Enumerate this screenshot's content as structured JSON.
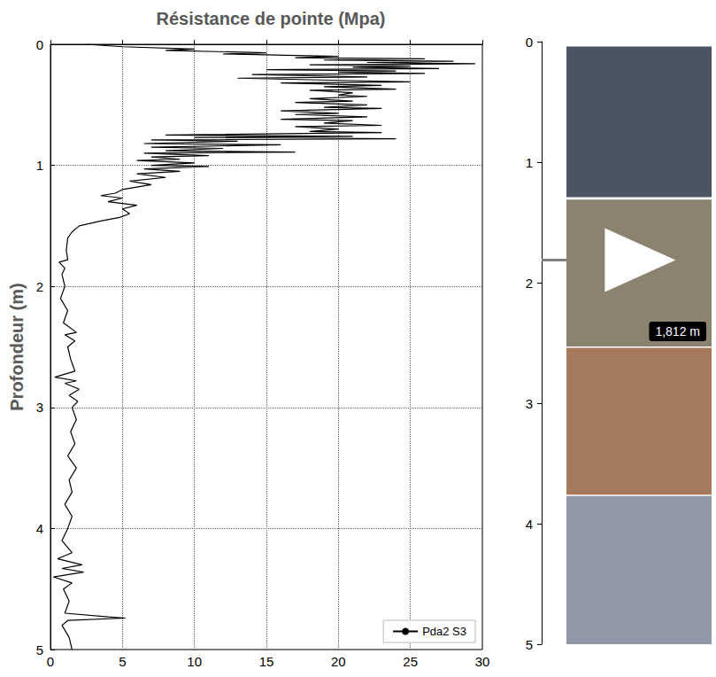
{
  "chart_data": {
    "type": "line",
    "x_label": "Résistance de pointe (Mpa)",
    "y_label": "Profondeur (m)",
    "series": [
      {
        "name": "Pda2 S3",
        "color": "#000000",
        "x": [
          2.5,
          5,
          10,
          8,
          15,
          12,
          20,
          17,
          26,
          19,
          28,
          22,
          29.5,
          18,
          25,
          21,
          27,
          15,
          24,
          20,
          26,
          14,
          22,
          13,
          21,
          25,
          16,
          23,
          19,
          24,
          18,
          21,
          20,
          22,
          18,
          21,
          17,
          22,
          19,
          23,
          16,
          20,
          17,
          22,
          16,
          21,
          19,
          23,
          17,
          20,
          18,
          23,
          8,
          21,
          10,
          24,
          7,
          13,
          6.5,
          16,
          7,
          12,
          8,
          17,
          6.5,
          11,
          7,
          9,
          6,
          10,
          7,
          11,
          6.5,
          9,
          6,
          8,
          5.5,
          7,
          5,
          4.5,
          3.5,
          5,
          4,
          6,
          5,
          5.5,
          4.8,
          3.5,
          2,
          1.5,
          1.2,
          1.1,
          1.2,
          0.6,
          1.0,
          0.8,
          1.0,
          0.7,
          1.2,
          0.9,
          1.8,
          1.0,
          1.7,
          1.2,
          1.4,
          1.7,
          0.3,
          1.8,
          1.0,
          2.0,
          1.3,
          1.9,
          1.5,
          1.8,
          1.4,
          1.7,
          1.2,
          1.8,
          1.3,
          1.5,
          1.0,
          1.5,
          1.2,
          0.8,
          1.5,
          0.5,
          2.2,
          0.8,
          2.3,
          0.2,
          1.5,
          0.9,
          1.3,
          1.0,
          4.0,
          5.2,
          1.2,
          0.8,
          1.3,
          1.5
        ],
        "y": [
          0.0,
          0.02,
          0.04,
          0.05,
          0.07,
          0.08,
          0.1,
          0.11,
          0.12,
          0.13,
          0.14,
          0.15,
          0.16,
          0.17,
          0.18,
          0.19,
          0.2,
          0.21,
          0.22,
          0.23,
          0.24,
          0.25,
          0.27,
          0.28,
          0.3,
          0.31,
          0.32,
          0.34,
          0.35,
          0.37,
          0.38,
          0.4,
          0.42,
          0.43,
          0.45,
          0.47,
          0.48,
          0.5,
          0.52,
          0.53,
          0.55,
          0.57,
          0.58,
          0.6,
          0.62,
          0.63,
          0.65,
          0.67,
          0.68,
          0.7,
          0.72,
          0.73,
          0.75,
          0.76,
          0.77,
          0.78,
          0.79,
          0.8,
          0.82,
          0.83,
          0.85,
          0.86,
          0.88,
          0.89,
          0.9,
          0.92,
          0.93,
          0.95,
          0.96,
          0.98,
          1.0,
          1.01,
          1.03,
          1.05,
          1.07,
          1.1,
          1.13,
          1.16,
          1.2,
          1.23,
          1.25,
          1.27,
          1.3,
          1.33,
          1.36,
          1.4,
          1.43,
          1.46,
          1.5,
          1.55,
          1.6,
          1.7,
          1.78,
          1.8,
          1.85,
          1.9,
          2.0,
          2.1,
          2.2,
          2.3,
          2.38,
          2.4,
          2.45,
          2.5,
          2.6,
          2.7,
          2.75,
          2.78,
          2.8,
          2.85,
          2.9,
          2.95,
          3.0,
          3.1,
          3.2,
          3.3,
          3.4,
          3.5,
          3.6,
          3.7,
          3.8,
          3.9,
          4.0,
          4.1,
          4.2,
          4.25,
          4.3,
          4.33,
          4.36,
          4.4,
          4.45,
          4.5,
          4.6,
          4.7,
          4.73,
          4.74,
          4.76,
          4.8,
          4.9,
          5.0
        ]
      }
    ],
    "xlim": [
      0,
      30
    ],
    "xticks": [
      0,
      5,
      10,
      15,
      20,
      25,
      30
    ],
    "ylim": [
      0,
      5
    ],
    "yticks": [
      0,
      1,
      2,
      3,
      4,
      5
    ],
    "y2lim": [
      0,
      5
    ],
    "y2ticks": [
      0,
      1,
      2,
      3,
      4,
      5
    ],
    "grid": true,
    "legend": "lower right",
    "samples": [
      {
        "from": 0.04,
        "to": 1.29,
        "color": "#4b5463"
      },
      {
        "from": 1.31,
        "to": 2.53,
        "color": "#8c8270"
      },
      {
        "from": 2.54,
        "to": 3.76,
        "color": "#a57a5c"
      },
      {
        "from": 3.77,
        "to": 5.0,
        "color": "#9097a6"
      }
    ],
    "marker": {
      "depth": 1.812,
      "label": "1,812 m"
    }
  }
}
